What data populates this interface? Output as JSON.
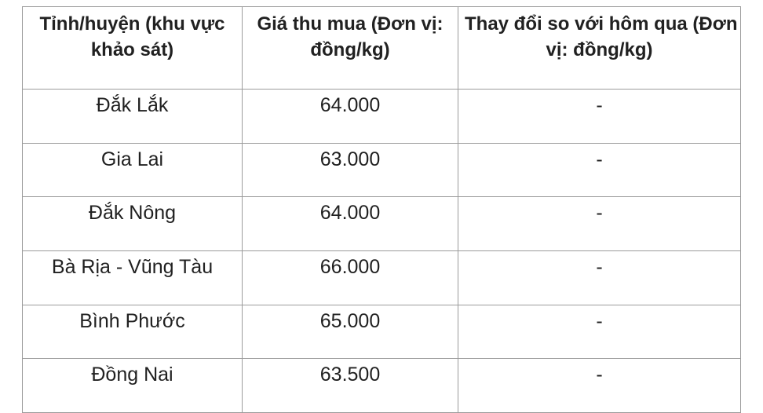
{
  "style": {
    "border_color": "#9b9b9b",
    "text_color": "#212121",
    "background_color": "#ffffff"
  },
  "chart_data": {
    "type": "table",
    "title": "",
    "columns": [
      {
        "id": "province",
        "label": "Tỉnh/huyện (khu vực khảo sát)",
        "lines": [
          "Tỉnh/huyện (khu vực",
          "khảo sát)"
        ]
      },
      {
        "id": "price",
        "label": "Giá thu mua (Đơn vị: đồng/kg)",
        "lines": [
          "Giá thu mua (Đơn vị:",
          "đồng/kg)"
        ]
      },
      {
        "id": "change",
        "label": "Thay đổi so với hôm qua (Đơn vị: đồng/kg)",
        "lines": [
          "Thay đổi so với hôm qua (Đơn",
          "vị: đồng/kg)"
        ]
      }
    ],
    "rows": [
      {
        "province": "Đắk Lắk",
        "price": "64.000",
        "change": "-"
      },
      {
        "province": "Gia Lai",
        "price": "63.000",
        "change": "-"
      },
      {
        "province": "Đắk Nông",
        "price": "64.000",
        "change": "-"
      },
      {
        "province": "Bà Rịa - Vũng Tàu",
        "price": "66.000",
        "change": "-"
      },
      {
        "province": "Bình Phước",
        "price": "65.000",
        "change": "-"
      },
      {
        "province": "Đồng Nai",
        "price": "63.500",
        "change": "-"
      }
    ],
    "price_values_numeric": [
      64000,
      63000,
      64000,
      66000,
      65000,
      63500
    ],
    "unit": "đồng/kg"
  }
}
